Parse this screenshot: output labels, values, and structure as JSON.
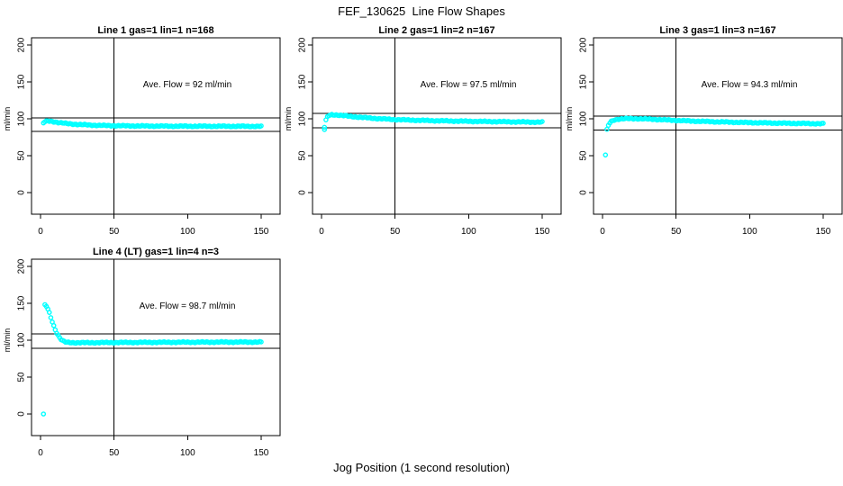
{
  "figure": {
    "title": "FEF_130625  Line Flow Shapes",
    "xlabel": "Jog Position (1 second resolution)",
    "background": "#ffffff",
    "axis_color": "#000000",
    "point_color": "#00ffff"
  },
  "chart_data": [
    {
      "type": "scatter",
      "title": "Line 1 gas=1 lin=1 n=168",
      "n": 168,
      "ave_flow": 92,
      "ave_flow_text": "Ave. Flow =  92  ml/min",
      "ylabel": "ml/min",
      "x_ticks": [
        0,
        50,
        100,
        150
      ],
      "y_ticks": [
        0,
        50,
        100,
        150,
        200
      ],
      "xlim": [
        -6,
        163
      ],
      "ylim": [
        -29,
        210
      ],
      "ref_lines_h": [
        101.2,
        82.8
      ],
      "ref_line_v": 50,
      "trend": [
        [
          2,
          94.5
        ],
        [
          3,
          96
        ],
        [
          5,
          97
        ],
        [
          8,
          96.5
        ],
        [
          12,
          95
        ],
        [
          18,
          93.5
        ],
        [
          26,
          92.3
        ],
        [
          36,
          91.3
        ],
        [
          48,
          90.7
        ],
        [
          65,
          90.3
        ],
        [
          90,
          90
        ],
        [
          120,
          89.9
        ],
        [
          150,
          89.8
        ]
      ],
      "outliers": []
    },
    {
      "type": "scatter",
      "title": "Line 2 gas=1 lin=2 n=167",
      "n": 167,
      "ave_flow": 97.5,
      "ave_flow_text": "Ave. Flow =  97.5  ml/min",
      "ylabel": "ml/min",
      "x_ticks": [
        0,
        50,
        100,
        150
      ],
      "y_ticks": [
        0,
        50,
        100,
        150,
        200
      ],
      "xlim": [
        -6,
        163
      ],
      "ylim": [
        -29,
        210
      ],
      "ref_lines_h": [
        107.3,
        87.8
      ],
      "ref_line_v": 50,
      "trend": [
        [
          3,
          98
        ],
        [
          4,
          102.5
        ],
        [
          5,
          104.5
        ],
        [
          7,
          105.5
        ],
        [
          10,
          105.3
        ],
        [
          14,
          104.5
        ],
        [
          20,
          103.2
        ],
        [
          28,
          101.8
        ],
        [
          38,
          100.3
        ],
        [
          50,
          99
        ],
        [
          65,
          98
        ],
        [
          80,
          97.3
        ],
        [
          100,
          96.6
        ],
        [
          125,
          96
        ],
        [
          150,
          95.4
        ]
      ],
      "outliers": [
        [
          2,
          88.5
        ],
        [
          2,
          85.5
        ]
      ]
    },
    {
      "type": "scatter",
      "title": "Line 3 gas=1 lin=3 n=167",
      "n": 167,
      "ave_flow": 94.3,
      "ave_flow_text": "Ave. Flow =  94.3  ml/min",
      "ylabel": "ml/min",
      "x_ticks": [
        0,
        50,
        100,
        150
      ],
      "y_ticks": [
        0,
        50,
        100,
        150,
        200
      ],
      "xlim": [
        -6,
        163
      ],
      "ylim": [
        -29,
        210
      ],
      "ref_lines_h": [
        103.7,
        84.9
      ],
      "ref_line_v": 50,
      "trend": [
        [
          3,
          85
        ],
        [
          4,
          91
        ],
        [
          5,
          94.5
        ],
        [
          6,
          96.5
        ],
        [
          8,
          98.5
        ],
        [
          11,
          99.7
        ],
        [
          16,
          100.2
        ],
        [
          24,
          100.2
        ],
        [
          34,
          99.4
        ],
        [
          46,
          98.2
        ],
        [
          60,
          97
        ],
        [
          78,
          95.9
        ],
        [
          98,
          94.9
        ],
        [
          120,
          94.1
        ],
        [
          150,
          93.3
        ]
      ],
      "outliers": [
        [
          2,
          51
        ]
      ]
    },
    {
      "type": "scatter",
      "title": "Line 4 (LT) gas=1 lin=4 n=3",
      "n": 3,
      "ave_flow": 98.7,
      "ave_flow_text": "Ave. Flow =  98.7  ml/min",
      "ylabel": "ml/min",
      "x_ticks": [
        0,
        50,
        100,
        150
      ],
      "y_ticks": [
        0,
        50,
        100,
        150,
        200
      ],
      "xlim": [
        -6,
        163
      ],
      "ylim": [
        -29,
        210
      ],
      "ref_lines_h": [
        108.6,
        88.8
      ],
      "ref_line_v": 50,
      "trend": [
        [
          3,
          147.5
        ],
        [
          4,
          146
        ],
        [
          5,
          142
        ],
        [
          6,
          137
        ],
        [
          7,
          131
        ],
        [
          8,
          125
        ],
        [
          9,
          119.5
        ],
        [
          10,
          114.5
        ],
        [
          11,
          110
        ],
        [
          12,
          106.5
        ],
        [
          13,
          103.5
        ],
        [
          14,
          101
        ],
        [
          15,
          99.3
        ],
        [
          16,
          98.2
        ],
        [
          17,
          97.5
        ],
        [
          18,
          97.1
        ],
        [
          20,
          96.8
        ],
        [
          24,
          96.6
        ],
        [
          32,
          96.6
        ],
        [
          45,
          96.8
        ],
        [
          65,
          97
        ],
        [
          90,
          97.2
        ],
        [
          120,
          97.4
        ],
        [
          150,
          97.5
        ]
      ],
      "outliers": [
        [
          2,
          0
        ]
      ]
    }
  ]
}
